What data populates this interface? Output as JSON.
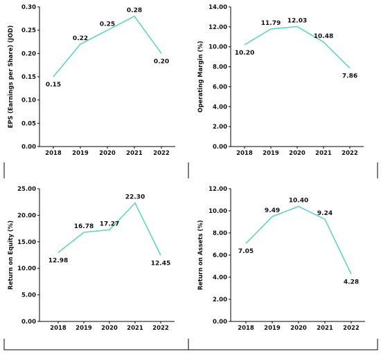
{
  "colors": {
    "line": "#5dd6bd",
    "axis": "#000000",
    "text": "#111111"
  },
  "chart_data": [
    {
      "type": "line",
      "categories": [
        "2018",
        "2019",
        "2020",
        "2021",
        "2022"
      ],
      "values": [
        0.15,
        0.22,
        0.25,
        0.28,
        0.2
      ],
      "value_labels": [
        "0.15",
        "0.22",
        "0.25",
        "0.28",
        "0.20"
      ],
      "ylabel": "EPS (Earnings per Share) (JOD)",
      "ylim": [
        0,
        0.3
      ],
      "yticks": [
        "0.00",
        "0.05",
        "0.10",
        "0.15",
        "0.20",
        "0.25",
        "0.30"
      ],
      "label_pos": [
        "below",
        "above",
        "above",
        "above",
        "below"
      ]
    },
    {
      "type": "line",
      "categories": [
        "2018",
        "2019",
        "2020",
        "2021",
        "2022"
      ],
      "values": [
        10.2,
        11.79,
        12.03,
        10.48,
        7.86
      ],
      "value_labels": [
        "10.20",
        "11.79",
        "12.03",
        "10.48",
        "7.86"
      ],
      "ylabel": "Operating Margin (%)",
      "ylim": [
        0,
        14
      ],
      "yticks": [
        "0.00",
        "2.00",
        "4.00",
        "6.00",
        "8.00",
        "10.00",
        "12.00",
        "14.00"
      ],
      "label_pos": [
        "below",
        "above",
        "above",
        "above",
        "below"
      ]
    },
    {
      "type": "line",
      "categories": [
        "2018",
        "2019",
        "2020",
        "2021",
        "2022"
      ],
      "values": [
        12.98,
        16.78,
        17.27,
        22.3,
        12.45
      ],
      "value_labels": [
        "12.98",
        "16.78",
        "17.27",
        "22.30",
        "12.45"
      ],
      "ylabel": "Return on Equity (%)",
      "ylim": [
        0,
        25
      ],
      "yticks": [
        "0.00",
        "5.00",
        "10.00",
        "15.00",
        "20.00",
        "25.00"
      ],
      "label_pos": [
        "below",
        "above",
        "above",
        "above",
        "below"
      ]
    },
    {
      "type": "line",
      "categories": [
        "2018",
        "2019",
        "2020",
        "2021",
        "2022"
      ],
      "values": [
        7.05,
        9.49,
        10.4,
        9.24,
        4.28
      ],
      "value_labels": [
        "7.05",
        "9.49",
        "10.40",
        "9.24",
        "4.28"
      ],
      "ylabel": "Return on Assets (%)",
      "ylim": [
        0,
        12
      ],
      "yticks": [
        "0.00",
        "2.00",
        "4.00",
        "6.00",
        "8.00",
        "10.00",
        "12.00"
      ],
      "label_pos": [
        "below",
        "above",
        "above",
        "above",
        "below"
      ]
    }
  ]
}
